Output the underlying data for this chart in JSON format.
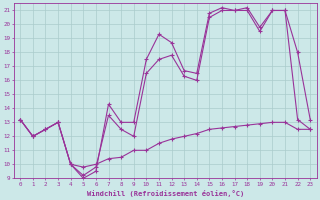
{
  "xlabel": "Windchill (Refroidissement éolien,°C)",
  "bg_color": "#cce8e8",
  "grid_color": "#aacccc",
  "line_color": "#993399",
  "xlim": [
    -0.5,
    23.5
  ],
  "ylim": [
    9,
    21.5
  ],
  "xticks": [
    0,
    1,
    2,
    3,
    4,
    5,
    6,
    7,
    8,
    9,
    10,
    11,
    12,
    13,
    14,
    15,
    16,
    17,
    18,
    19,
    20,
    21,
    22,
    23
  ],
  "yticks": [
    9,
    10,
    11,
    12,
    13,
    14,
    15,
    16,
    17,
    18,
    19,
    20,
    21
  ],
  "line1_x": [
    0,
    1,
    2,
    3,
    4,
    5,
    6,
    7,
    8,
    9,
    10,
    11,
    12,
    13,
    14,
    15,
    16,
    17,
    18,
    19,
    20,
    21,
    22,
    23
  ],
  "line1_y": [
    13.2,
    12.0,
    12.5,
    13.0,
    10.0,
    9.0,
    9.5,
    14.3,
    13.0,
    13.0,
    17.5,
    19.3,
    18.7,
    16.7,
    16.5,
    20.8,
    21.2,
    21.0,
    21.2,
    19.8,
    21.0,
    21.0,
    18.0,
    13.2
  ],
  "line2_x": [
    0,
    1,
    2,
    3,
    4,
    5,
    6,
    7,
    8,
    9,
    10,
    11,
    12,
    13,
    14,
    15,
    16,
    17,
    18,
    19,
    20,
    21,
    22,
    23
  ],
  "line2_y": [
    13.2,
    12.0,
    12.5,
    13.0,
    10.0,
    9.8,
    10.0,
    10.4,
    10.5,
    11.0,
    11.0,
    11.5,
    11.8,
    12.0,
    12.2,
    12.5,
    12.6,
    12.7,
    12.8,
    12.9,
    13.0,
    13.0,
    12.5,
    12.5
  ],
  "line3_x": [
    0,
    1,
    2,
    3,
    4,
    5,
    6,
    7,
    8,
    9,
    10,
    11,
    12,
    13,
    14,
    15,
    16,
    17,
    18,
    19,
    20,
    21,
    22,
    23
  ],
  "line3_y": [
    13.2,
    12.0,
    12.5,
    13.0,
    10.0,
    9.2,
    9.8,
    13.5,
    12.5,
    12.0,
    16.5,
    17.5,
    17.8,
    16.3,
    16.0,
    20.5,
    21.0,
    21.0,
    21.0,
    19.5,
    21.0,
    21.0,
    13.2,
    12.5
  ]
}
